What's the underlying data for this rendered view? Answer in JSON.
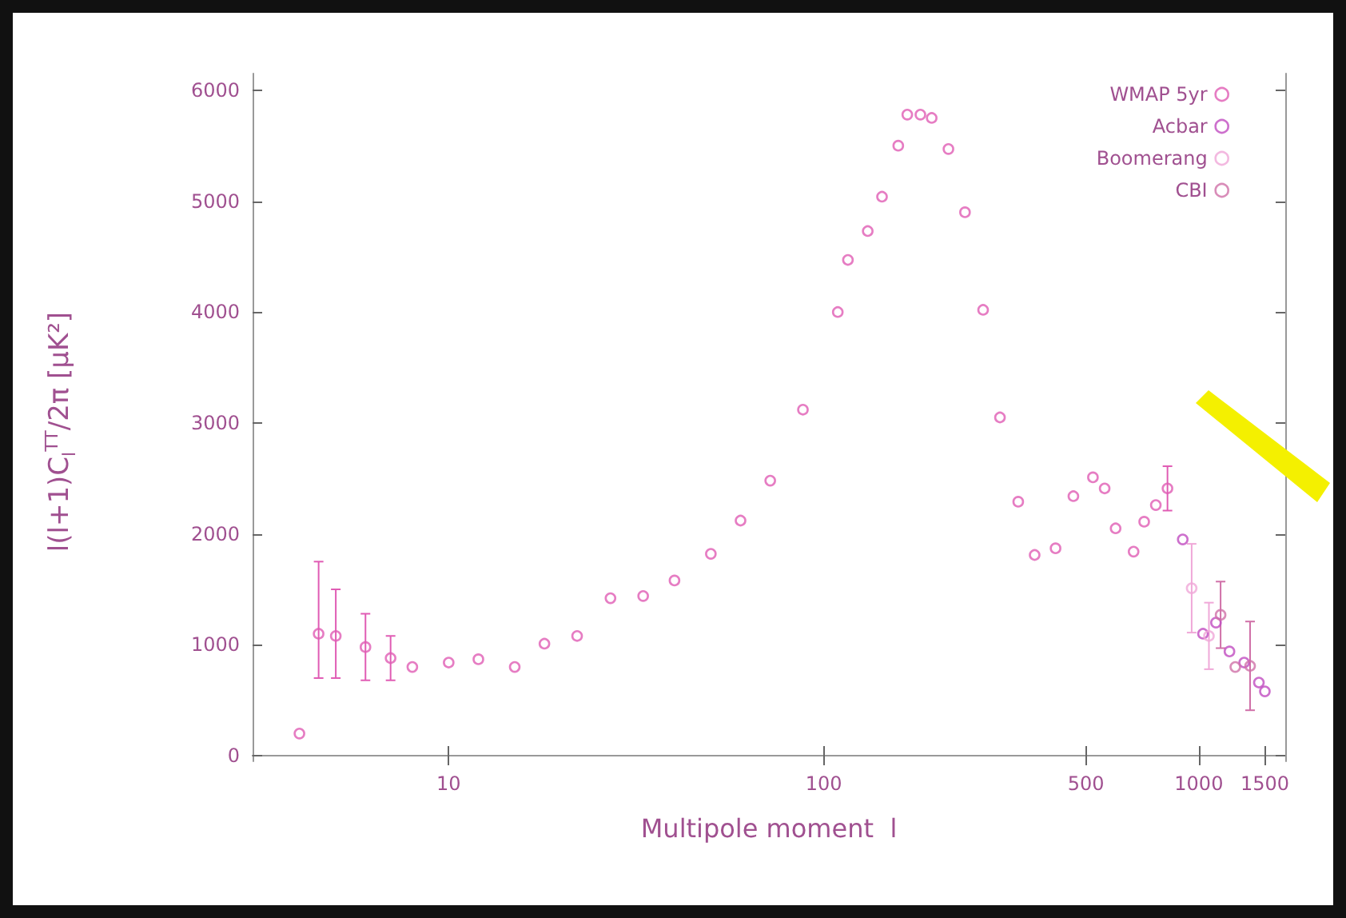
{
  "chart_data": {
    "type": "scatter",
    "xlabel": "Multipole moment  l",
    "ylabel": "l(l+1)C$_{l}$$^{TT}$/2π [μK²]",
    "log": "x",
    "xlim": [
      3,
      1700
    ],
    "xticks": [
      10,
      100,
      500,
      1000,
      1500
    ],
    "ylim": [
      -50,
      6150
    ],
    "yticks": [
      0,
      1000,
      2000,
      3000,
      4000,
      5000,
      6000
    ],
    "grid": false,
    "legend": "top right",
    "marker": "circle",
    "series": [
      {
        "name": "WMAP 5yr",
        "color": "#e05cb4",
        "x": [
          4,
          4.5,
          5,
          6,
          7,
          8,
          10,
          12,
          15,
          18,
          22,
          27,
          33,
          40,
          50,
          60,
          72,
          88,
          109,
          116,
          131,
          143,
          158,
          167,
          181,
          194,
          215,
          238,
          266,
          295,
          330,
          365,
          415,
          463,
          522,
          561,
          600,
          670,
          715,
          768,
          825
        ],
        "values": [
          200,
          1100,
          1080,
          980,
          880,
          800,
          840,
          870,
          800,
          1010,
          1080,
          1420,
          1440,
          1580,
          1820,
          2120,
          2480,
          3120,
          4000,
          4470,
          4730,
          5040,
          5500,
          5780,
          5780,
          5750,
          5470,
          4900,
          4020,
          3050,
          2290,
          1810,
          1870,
          2340,
          2510,
          2410,
          2050,
          1840,
          2110,
          2260,
          2410
        ],
        "errors": [
          null,
          [
            700,
            1750
          ],
          [
            700,
            1500
          ],
          300,
          200,
          null,
          null,
          null,
          null,
          null,
          null,
          null,
          null,
          null,
          null,
          null,
          null,
          null,
          null,
          null,
          null,
          null,
          null,
          null,
          null,
          null,
          null,
          null,
          null,
          null,
          null,
          null,
          null,
          null,
          null,
          null,
          null,
          null,
          null,
          null,
          200
        ]
      },
      {
        "name": "Acbar",
        "color": "#c04cc0",
        "x": [
          906,
          1026,
          1111,
          1207,
          1321,
          1446,
          1500
        ],
        "values": [
          1950,
          1100,
          1200,
          940,
          840,
          660,
          580
        ]
      },
      {
        "name": "Boomerang",
        "color": "#f0a8d8",
        "x": [
          957,
          1064
        ],
        "values": [
          1510,
          1080
        ],
        "errors": [
          400,
          300
        ]
      },
      {
        "name": "CBI",
        "color": "#d070a8",
        "x": [
          1143,
          1251,
          1370
        ],
        "values": [
          1270,
          800,
          810
        ],
        "errors": [
          300,
          null,
          400
        ]
      }
    ]
  }
}
